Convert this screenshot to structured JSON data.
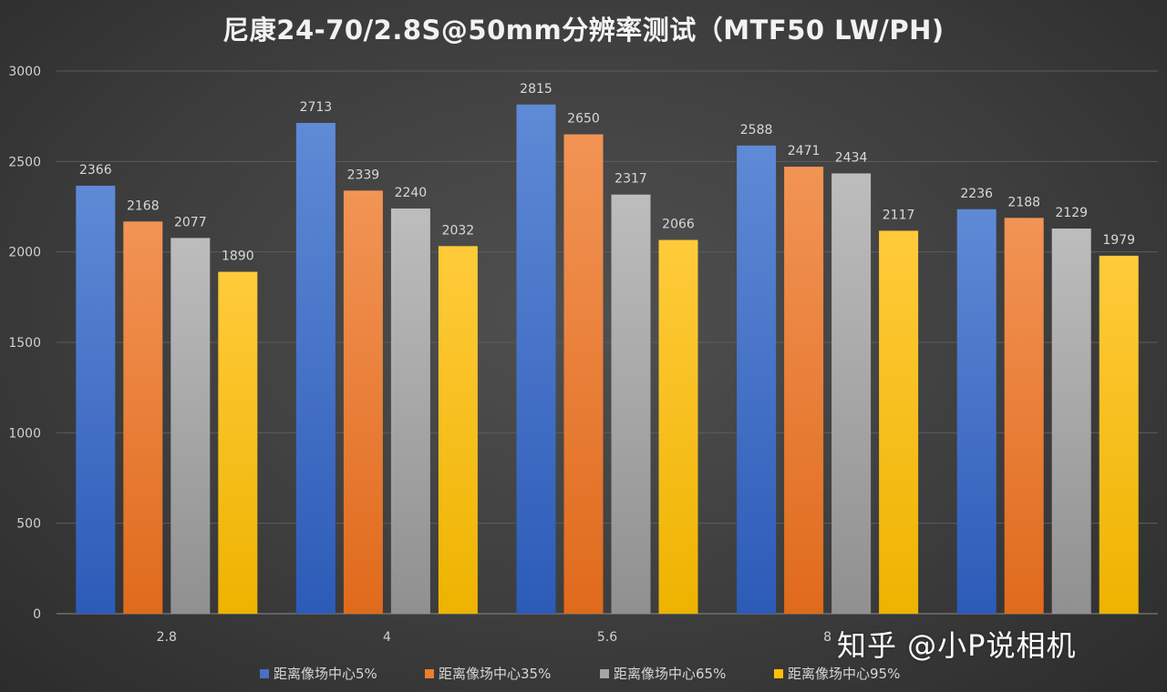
{
  "chart_data": {
    "type": "bar",
    "title": "尼康24-70/2.8S@50mm分辨率测试（MTF50 LW/PH)",
    "xlabel": "",
    "ylabel": "",
    "categories": [
      "2.8",
      "4",
      "5.6",
      "8",
      ""
    ],
    "ylim": [
      0,
      3000
    ],
    "yticks": [
      0,
      500,
      1000,
      1500,
      2000,
      2500,
      3000
    ],
    "grid": true,
    "legend_position": "bottom",
    "series": [
      {
        "name": "距离像场中心5%",
        "color": "#4472c4",
        "values": [
          2366,
          2713,
          2815,
          2588,
          2236
        ]
      },
      {
        "name": "距离像场中心35%",
        "color": "#ed7d31",
        "values": [
          2168,
          2339,
          2650,
          2471,
          2188
        ]
      },
      {
        "name": "距离像场中心65%",
        "color": "#a5a5a5",
        "values": [
          2077,
          2240,
          2317,
          2434,
          2129
        ]
      },
      {
        "name": "距离像场中心95%",
        "color": "#ffc000",
        "values": [
          1890,
          2032,
          2066,
          2117,
          1979
        ]
      }
    ]
  },
  "watermark": "知乎 @小P说相机"
}
